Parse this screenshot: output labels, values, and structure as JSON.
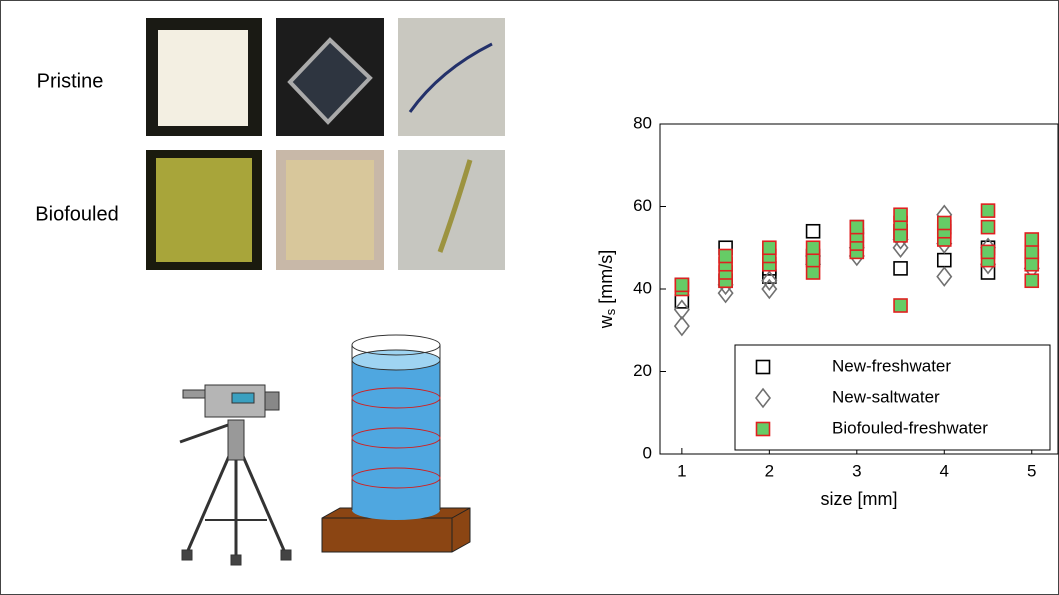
{
  "labels": {
    "pristine": "Pristine",
    "biofouled": "Biofouled"
  },
  "chart_data": {
    "type": "scatter",
    "xlabel": "size [mm]",
    "ylabel_parts": [
      "w",
      "s",
      " [mm/s]"
    ],
    "xlim": [
      0.75,
      5.3
    ],
    "ylim": [
      0,
      80
    ],
    "xticks": [
      1,
      2,
      3,
      4,
      5
    ],
    "yticks": [
      0,
      20,
      40,
      60,
      80
    ],
    "legend": "lower right",
    "series": [
      {
        "name": "New-freshwater",
        "marker": "square",
        "color": "#000000",
        "fill": "none",
        "x": [
          1,
          1,
          1.5,
          1.5,
          2,
          2,
          2.5,
          2.5,
          3,
          3,
          3.5,
          3.5,
          4,
          4,
          4.5,
          4.5,
          5
        ],
        "values": [
          41,
          37,
          50,
          42,
          45,
          43,
          54,
          48,
          55,
          52,
          45,
          54,
          47,
          55,
          44,
          50,
          48
        ]
      },
      {
        "name": "New-saltwater",
        "marker": "diamond",
        "color": "#707070",
        "fill": "none",
        "x": [
          1,
          1,
          1.5,
          1.5,
          2,
          2,
          2.5,
          2.5,
          3,
          3,
          3.5,
          3.5,
          4,
          4,
          4,
          4.5,
          4.5,
          5
        ],
        "values": [
          31,
          35,
          39,
          41,
          40,
          42,
          46,
          48,
          48,
          50,
          50,
          52,
          43,
          51,
          58,
          46,
          50,
          45
        ]
      },
      {
        "name": "Biofouled-freshwater",
        "marker": "square",
        "color": "#e02020",
        "fill": "#66cc66",
        "x": [
          1,
          1,
          1.5,
          1.5,
          1.5,
          1.5,
          2,
          2,
          2,
          2.5,
          2.5,
          2.5,
          3,
          3,
          3,
          3,
          3.5,
          3.5,
          3.5,
          3.5,
          4,
          4,
          4,
          4.5,
          4.5,
          4.5,
          4.5,
          5,
          5,
          5,
          5
        ],
        "values": [
          40,
          41,
          42,
          44,
          46,
          48,
          46,
          48,
          50,
          44,
          47,
          50,
          49,
          51,
          53,
          55,
          36,
          53,
          56,
          58,
          52,
          54,
          56,
          47,
          49,
          55,
          59,
          42,
          46,
          49,
          52
        ]
      }
    ]
  }
}
